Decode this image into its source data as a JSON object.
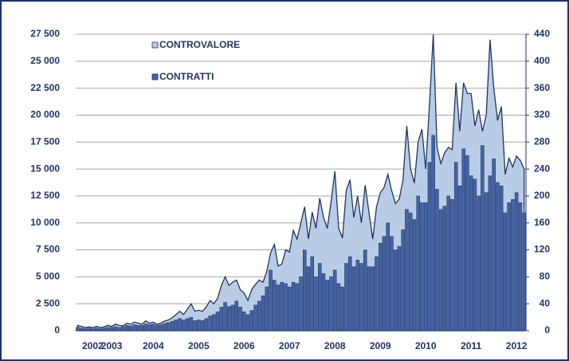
{
  "chart_data": {
    "type": "bar_area",
    "categories": [
      null,
      null,
      null,
      null,
      "2002",
      null,
      null,
      null,
      null,
      "2003",
      null,
      null,
      null,
      null,
      null,
      null,
      null,
      null,
      null,
      null,
      "2004",
      null,
      null,
      null,
      null,
      null,
      null,
      null,
      null,
      null,
      null,
      null,
      "2005",
      null,
      null,
      null,
      null,
      null,
      null,
      null,
      null,
      null,
      null,
      null,
      "2006",
      null,
      null,
      null,
      null,
      null,
      null,
      null,
      null,
      null,
      null,
      null,
      "2007",
      null,
      null,
      null,
      null,
      null,
      null,
      null,
      null,
      null,
      null,
      null,
      "2008",
      null,
      null,
      null,
      null,
      null,
      null,
      null,
      null,
      null,
      null,
      null,
      "2009",
      null,
      null,
      null,
      null,
      null,
      null,
      null,
      null,
      null,
      null,
      null,
      "2010",
      null,
      null,
      null,
      null,
      null,
      null,
      null,
      null,
      null,
      null,
      null,
      "2011",
      null,
      null,
      null,
      null,
      null,
      null,
      null,
      null,
      null,
      null,
      null,
      "2012",
      null,
      null
    ],
    "series": [
      {
        "name": "CONTROVALORE",
        "color": "#b9cce6",
        "values": [
          500,
          400,
          300,
          350,
          300,
          400,
          300,
          350,
          500,
          400,
          600,
          500,
          450,
          700,
          600,
          800,
          700,
          600,
          900,
          700,
          800,
          600,
          700,
          900,
          1000,
          1200,
          1500,
          1800,
          1500,
          2000,
          2500,
          1800,
          1900,
          1800,
          2200,
          2800,
          2500,
          3000,
          4200,
          5000,
          4200,
          4500,
          4700,
          3800,
          3500,
          2800,
          3800,
          4300,
          4700,
          4500,
          5500,
          7200,
          8000,
          6000,
          6200,
          7500,
          7300,
          9300,
          8500,
          10000,
          11500,
          8500,
          11000,
          9500,
          12300,
          10500,
          9500,
          12000,
          14800,
          9500,
          8600,
          13000,
          14000,
          10500,
          12500,
          10000,
          13500,
          11000,
          8500,
          11500,
          12800,
          13300,
          14500,
          13000,
          11800,
          12200,
          14000,
          19000,
          15000,
          13700,
          17500,
          18700,
          15000,
          21000,
          27500,
          17000,
          15500,
          16500,
          17000,
          16800,
          23000,
          18500,
          23000,
          22000,
          22000,
          19000,
          20500,
          18500,
          20000,
          27000,
          22500,
          19500,
          20800,
          14500,
          16000,
          15200,
          16200,
          15800,
          15000
        ]
      },
      {
        "name": "CONTRATTI",
        "color": "#4463a3",
        "axis": "y2",
        "values": [
          5,
          4,
          3,
          4,
          3,
          4,
          3,
          4,
          5,
          5,
          6,
          5,
          6,
          8,
          7,
          9,
          8,
          8,
          10,
          9,
          10,
          8,
          9,
          11,
          12,
          14,
          16,
          18,
          16,
          18,
          20,
          15,
          16,
          15,
          18,
          22,
          24,
          28,
          35,
          42,
          36,
          38,
          44,
          35,
          28,
          24,
          30,
          38,
          44,
          52,
          65,
          90,
          75,
          68,
          72,
          70,
          65,
          72,
          70,
          80,
          120,
          95,
          110,
          80,
          100,
          85,
          75,
          80,
          90,
          70,
          65,
          100,
          110,
          95,
          105,
          100,
          120,
          95,
          95,
          110,
          130,
          140,
          160,
          140,
          120,
          125,
          150,
          180,
          175,
          165,
          200,
          190,
          190,
          250,
          290,
          210,
          180,
          185,
          200,
          195,
          250,
          215,
          270,
          260,
          230,
          225,
          200,
          275,
          205,
          230,
          255,
          220,
          215,
          175,
          190,
          195,
          205,
          190,
          175
        ]
      }
    ],
    "ylim": [
      0,
      27500
    ],
    "yticks": [
      0,
      {
        "value": 2500,
        "label": "2 500"
      },
      {
        "value": 5000,
        "label": "5 000"
      },
      {
        "value": 7500,
        "label": "7 500"
      },
      {
        "value": 10000,
        "label": "10 000"
      },
      {
        "value": 12500,
        "label": "12 500"
      },
      {
        "value": 15000,
        "label": "15 000"
      },
      {
        "value": 17500,
        "label": "17 500"
      },
      {
        "value": 20000,
        "label": "20 000"
      },
      {
        "value": 22500,
        "label": "22 500"
      },
      {
        "value": 25000,
        "label": "25 000"
      },
      {
        "value": 27500,
        "label": "27 500"
      }
    ],
    "y2lim": [
      0,
      440
    ],
    "y2ticks": [
      0,
      40,
      80,
      120,
      160,
      200,
      240,
      280,
      320,
      360,
      400,
      440
    ],
    "grid": true,
    "legend": "top-left"
  }
}
